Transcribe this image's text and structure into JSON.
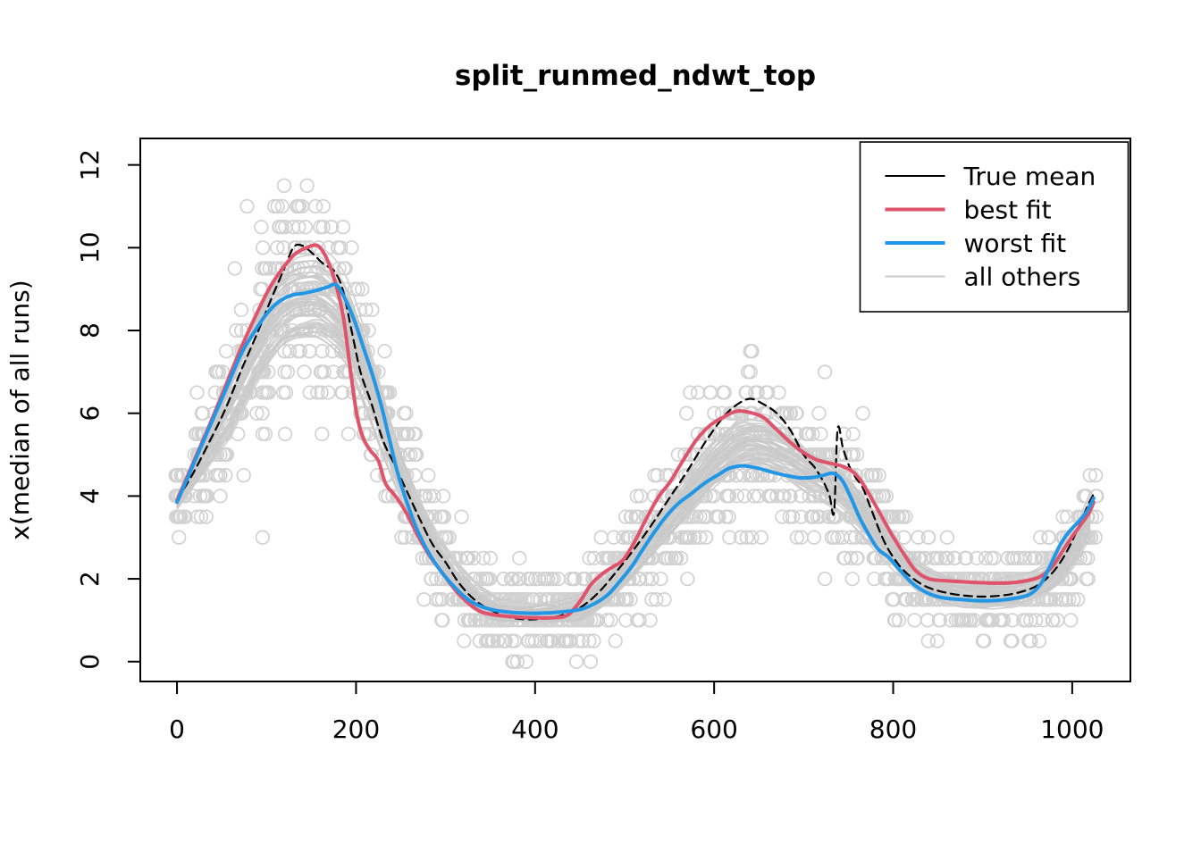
{
  "chart_data": {
    "type": "line",
    "title": "split_runmed_ndwt_top",
    "xlabel": "",
    "ylabel": "x(median of all runs)",
    "xlim": [
      -41,
      1065
    ],
    "ylim": [
      -0.48,
      12.64
    ],
    "x_ticks": [
      0,
      200,
      400,
      600,
      800,
      1000
    ],
    "x_tick_labels": [
      "0",
      "200",
      "400",
      "600",
      "800",
      "1000"
    ],
    "y_ticks": [
      0,
      2,
      4,
      6,
      8,
      10,
      12
    ],
    "y_tick_labels": [
      "0",
      "2",
      "4",
      "6",
      "8",
      "10",
      "12"
    ],
    "grid": false,
    "colors": {
      "true_mean": "#000000",
      "best_fit": "#DF536B",
      "worst_fit": "#2297E6",
      "others_line": "#C9C9C9",
      "others_point": "#D2D2D2",
      "axis": "#000000"
    },
    "legend": {
      "position": "top-right",
      "entries": [
        {
          "label": "True mean",
          "color": "#000000",
          "width": 2
        },
        {
          "label": "best fit",
          "color": "#DF536B",
          "width": 4
        },
        {
          "label": "worst fit",
          "color": "#2297E6",
          "width": 4
        },
        {
          "label": "all others",
          "color": "#C9C9C9",
          "width": 2
        }
      ]
    },
    "series": [
      {
        "name": "True mean",
        "color": "#000000",
        "width": 2.2,
        "dash": "9 6",
        "points": [
          [
            0,
            3.9
          ],
          [
            18,
            4.55
          ],
          [
            36,
            5.3
          ],
          [
            54,
            6.1
          ],
          [
            72,
            7.05
          ],
          [
            90,
            7.95
          ],
          [
            105,
            8.75
          ],
          [
            118,
            9.4
          ],
          [
            130,
            10.0
          ],
          [
            140,
            10.05
          ],
          [
            152,
            9.85
          ],
          [
            164,
            9.6
          ],
          [
            175,
            9.45
          ],
          [
            185,
            9.0
          ],
          [
            195,
            8.0
          ],
          [
            205,
            7.0
          ],
          [
            217,
            6.25
          ],
          [
            230,
            5.35
          ],
          [
            242,
            4.8
          ],
          [
            255,
            4.2
          ],
          [
            270,
            3.5
          ],
          [
            285,
            2.85
          ],
          [
            300,
            2.4
          ],
          [
            315,
            1.9
          ],
          [
            332,
            1.5
          ],
          [
            350,
            1.25
          ],
          [
            370,
            1.08
          ],
          [
            390,
            1.02
          ],
          [
            410,
            1.04
          ],
          [
            430,
            1.12
          ],
          [
            450,
            1.3
          ],
          [
            470,
            1.65
          ],
          [
            490,
            2.15
          ],
          [
            510,
            2.7
          ],
          [
            530,
            3.3
          ],
          [
            550,
            3.95
          ],
          [
            570,
            4.6
          ],
          [
            590,
            5.3
          ],
          [
            610,
            5.9
          ],
          [
            625,
            6.2
          ],
          [
            640,
            6.35
          ],
          [
            655,
            6.22
          ],
          [
            670,
            6.0
          ],
          [
            685,
            5.6
          ],
          [
            700,
            5.0
          ],
          [
            712,
            4.7
          ],
          [
            722,
            4.35
          ],
          [
            729,
            4.0
          ],
          [
            734,
            3.62
          ],
          [
            738,
            5.62
          ],
          [
            744,
            5.15
          ],
          [
            751,
            4.72
          ],
          [
            758,
            4.45
          ],
          [
            766,
            4.2
          ],
          [
            776,
            3.65
          ],
          [
            790,
            2.9
          ],
          [
            804,
            2.4
          ],
          [
            818,
            2.08
          ],
          [
            836,
            1.82
          ],
          [
            856,
            1.68
          ],
          [
            878,
            1.6
          ],
          [
            900,
            1.57
          ],
          [
            922,
            1.6
          ],
          [
            942,
            1.68
          ],
          [
            962,
            1.85
          ],
          [
            980,
            2.2
          ],
          [
            995,
            2.7
          ],
          [
            1008,
            3.3
          ],
          [
            1017,
            3.75
          ],
          [
            1024,
            4.05
          ]
        ]
      },
      {
        "name": "best fit",
        "color": "#DF536B",
        "width": 4,
        "points": [
          [
            0,
            3.9
          ],
          [
            18,
            4.8
          ],
          [
            36,
            5.7
          ],
          [
            54,
            6.65
          ],
          [
            72,
            7.6
          ],
          [
            90,
            8.45
          ],
          [
            104,
            9.05
          ],
          [
            118,
            9.5
          ],
          [
            132,
            9.85
          ],
          [
            145,
            10.0
          ],
          [
            157,
            10.05
          ],
          [
            167,
            9.75
          ],
          [
            177,
            9.15
          ],
          [
            186,
            8.3
          ],
          [
            194,
            7.0
          ],
          [
            201,
            5.95
          ],
          [
            208,
            5.4
          ],
          [
            216,
            5.1
          ],
          [
            225,
            4.85
          ],
          [
            233,
            4.3
          ],
          [
            244,
            4.0
          ],
          [
            256,
            3.6
          ],
          [
            270,
            3.0
          ],
          [
            284,
            2.5
          ],
          [
            298,
            2.1
          ],
          [
            312,
            1.7
          ],
          [
            326,
            1.4
          ],
          [
            340,
            1.2
          ],
          [
            358,
            1.12
          ],
          [
            378,
            1.08
          ],
          [
            398,
            1.06
          ],
          [
            418,
            1.06
          ],
          [
            436,
            1.12
          ],
          [
            450,
            1.45
          ],
          [
            462,
            1.85
          ],
          [
            474,
            2.1
          ],
          [
            486,
            2.28
          ],
          [
            498,
            2.45
          ],
          [
            510,
            2.85
          ],
          [
            523,
            3.4
          ],
          [
            537,
            3.95
          ],
          [
            551,
            4.35
          ],
          [
            565,
            4.85
          ],
          [
            580,
            5.35
          ],
          [
            595,
            5.7
          ],
          [
            610,
            5.9
          ],
          [
            625,
            6.05
          ],
          [
            640,
            6.02
          ],
          [
            655,
            5.9
          ],
          [
            670,
            5.6
          ],
          [
            685,
            5.3
          ],
          [
            700,
            5.05
          ],
          [
            714,
            4.88
          ],
          [
            728,
            4.8
          ],
          [
            742,
            4.73
          ],
          [
            753,
            4.62
          ],
          [
            763,
            4.4
          ],
          [
            773,
            4.05
          ],
          [
            786,
            3.55
          ],
          [
            799,
            3.05
          ],
          [
            812,
            2.6
          ],
          [
            825,
            2.2
          ],
          [
            840,
            2.0
          ],
          [
            862,
            1.95
          ],
          [
            884,
            1.92
          ],
          [
            906,
            1.9
          ],
          [
            928,
            1.9
          ],
          [
            948,
            1.95
          ],
          [
            964,
            2.05
          ],
          [
            978,
            2.3
          ],
          [
            990,
            2.7
          ],
          [
            1001,
            3.05
          ],
          [
            1011,
            3.35
          ],
          [
            1019,
            3.6
          ],
          [
            1024,
            3.85
          ]
        ]
      },
      {
        "name": "worst fit",
        "color": "#2297E6",
        "width": 4,
        "points": [
          [
            0,
            3.85
          ],
          [
            18,
            4.75
          ],
          [
            36,
            5.65
          ],
          [
            54,
            6.55
          ],
          [
            72,
            7.45
          ],
          [
            86,
            7.95
          ],
          [
            100,
            8.4
          ],
          [
            114,
            8.7
          ],
          [
            128,
            8.85
          ],
          [
            142,
            8.9
          ],
          [
            156,
            8.97
          ],
          [
            168,
            9.05
          ],
          [
            178,
            9.1
          ],
          [
            188,
            8.75
          ],
          [
            198,
            8.25
          ],
          [
            208,
            7.6
          ],
          [
            218,
            6.95
          ],
          [
            228,
            6.2
          ],
          [
            237,
            5.4
          ],
          [
            246,
            4.6
          ],
          [
            256,
            3.9
          ],
          [
            268,
            3.2
          ],
          [
            282,
            2.6
          ],
          [
            296,
            2.15
          ],
          [
            310,
            1.8
          ],
          [
            325,
            1.5
          ],
          [
            340,
            1.33
          ],
          [
            358,
            1.23
          ],
          [
            380,
            1.18
          ],
          [
            405,
            1.17
          ],
          [
            430,
            1.2
          ],
          [
            452,
            1.27
          ],
          [
            468,
            1.42
          ],
          [
            482,
            1.63
          ],
          [
            495,
            1.95
          ],
          [
            508,
            2.3
          ],
          [
            520,
            2.7
          ],
          [
            533,
            3.12
          ],
          [
            546,
            3.5
          ],
          [
            560,
            3.82
          ],
          [
            574,
            4.05
          ],
          [
            590,
            4.32
          ],
          [
            605,
            4.52
          ],
          [
            618,
            4.68
          ],
          [
            632,
            4.73
          ],
          [
            648,
            4.68
          ],
          [
            664,
            4.58
          ],
          [
            680,
            4.5
          ],
          [
            696,
            4.44
          ],
          [
            710,
            4.45
          ],
          [
            722,
            4.5
          ],
          [
            733,
            4.55
          ],
          [
            743,
            4.38
          ],
          [
            753,
            3.95
          ],
          [
            762,
            3.5
          ],
          [
            772,
            3.1
          ],
          [
            783,
            2.72
          ],
          [
            795,
            2.52
          ],
          [
            808,
            2.2
          ],
          [
            822,
            1.88
          ],
          [
            838,
            1.66
          ],
          [
            856,
            1.54
          ],
          [
            876,
            1.5
          ],
          [
            896,
            1.47
          ],
          [
            916,
            1.48
          ],
          [
            936,
            1.53
          ],
          [
            952,
            1.62
          ],
          [
            964,
            1.85
          ],
          [
            975,
            2.3
          ],
          [
            986,
            2.8
          ],
          [
            997,
            3.15
          ],
          [
            1008,
            3.4
          ],
          [
            1017,
            3.65
          ],
          [
            1024,
            3.95
          ]
        ]
      }
    ],
    "ensemble": {
      "name": "all others",
      "line_count": 50,
      "point_runs": 40,
      "seed": 1337,
      "point_quantize": 0.5,
      "mean_points": [
        [
          0,
          3.85
        ],
        [
          30,
          5.1
        ],
        [
          60,
          6.5
        ],
        [
          90,
          8.0
        ],
        [
          115,
          8.9
        ],
        [
          135,
          9.2
        ],
        [
          155,
          9.25
        ],
        [
          175,
          9.0
        ],
        [
          195,
          8.3
        ],
        [
          215,
          7.0
        ],
        [
          235,
          5.6
        ],
        [
          255,
          4.4
        ],
        [
          275,
          3.4
        ],
        [
          295,
          2.6
        ],
        [
          315,
          2.0
        ],
        [
          335,
          1.55
        ],
        [
          360,
          1.2
        ],
        [
          390,
          1.05
        ],
        [
          420,
          1.1
        ],
        [
          450,
          1.3
        ],
        [
          480,
          1.8
        ],
        [
          510,
          2.5
        ],
        [
          540,
          3.3
        ],
        [
          570,
          4.1
        ],
        [
          600,
          4.9
        ],
        [
          630,
          5.5
        ],
        [
          655,
          5.55
        ],
        [
          680,
          5.3
        ],
        [
          705,
          4.9
        ],
        [
          730,
          4.6
        ],
        [
          750,
          4.2
        ],
        [
          775,
          3.5
        ],
        [
          800,
          2.8
        ],
        [
          825,
          2.2
        ],
        [
          850,
          1.9
        ],
        [
          880,
          1.7
        ],
        [
          910,
          1.65
        ],
        [
          940,
          1.7
        ],
        [
          962,
          1.85
        ],
        [
          980,
          2.1
        ],
        [
          998,
          2.6
        ],
        [
          1012,
          3.2
        ],
        [
          1024,
          3.85
        ]
      ]
    }
  }
}
